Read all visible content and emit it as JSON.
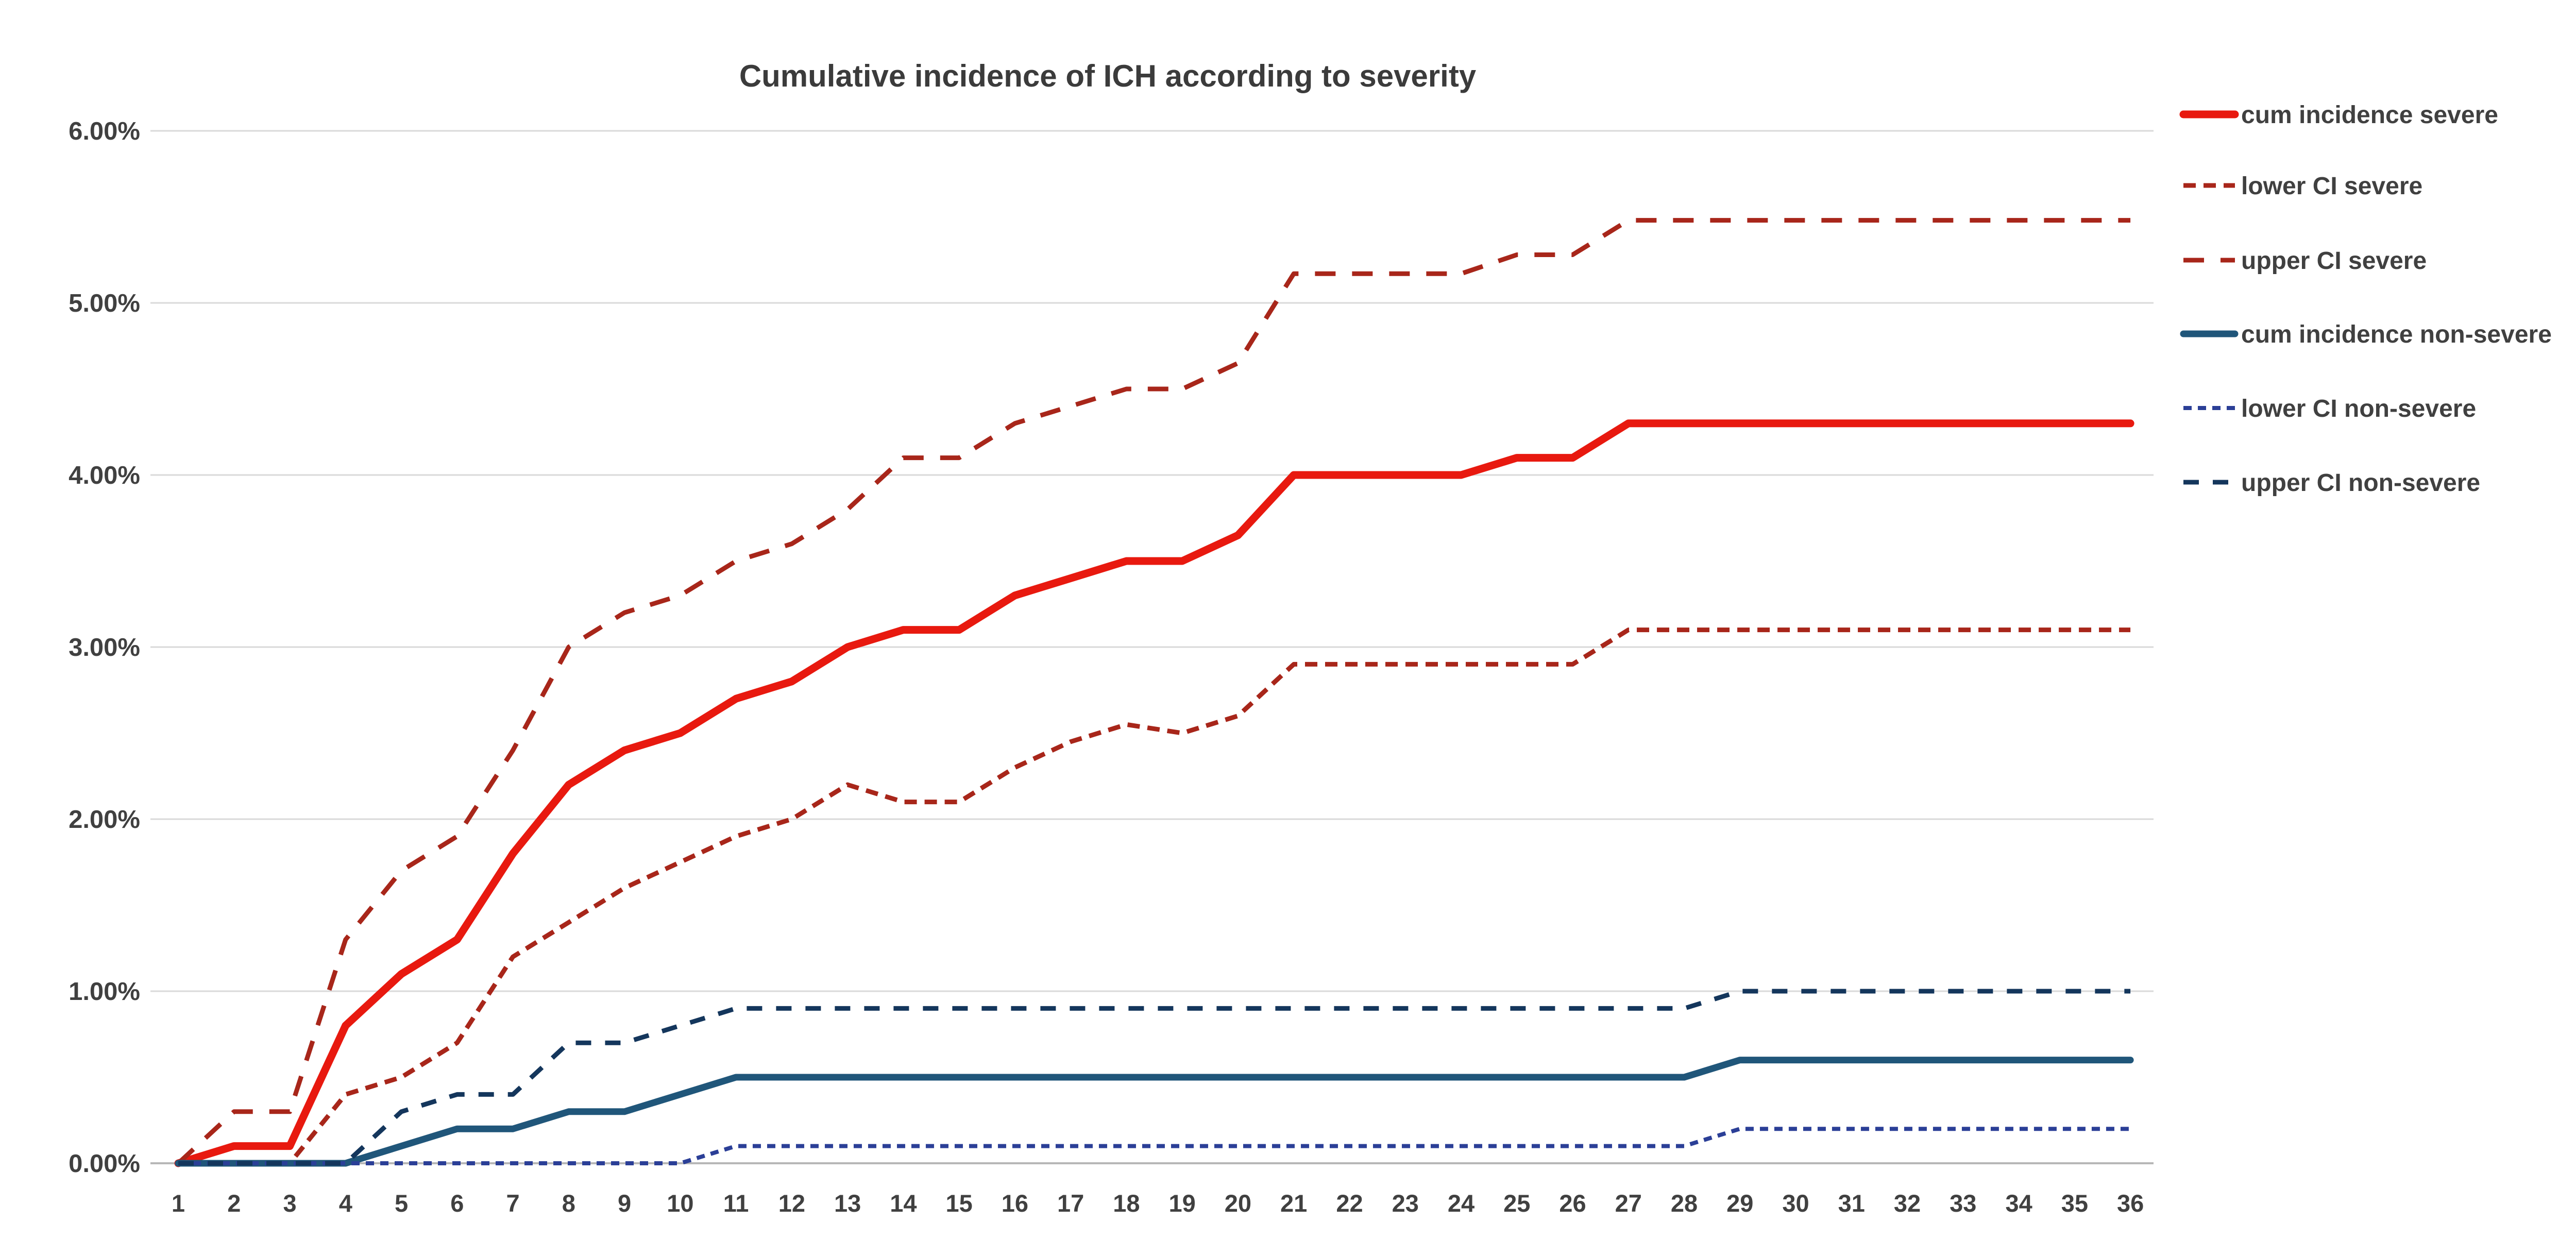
{
  "chart_data": {
    "type": "line",
    "title": "Cumulative incidence of ICH according to severity",
    "x_ticks": [
      1,
      2,
      3,
      4,
      5,
      6,
      7,
      8,
      9,
      10,
      11,
      12,
      13,
      14,
      15,
      16,
      17,
      18,
      19,
      20,
      21,
      22,
      23,
      24,
      25,
      26,
      27,
      28,
      29,
      30,
      31,
      32,
      33,
      34,
      35,
      36
    ],
    "y_ticks": [
      "0.00%",
      "1.00%",
      "2.00%",
      "3.00%",
      "4.00%",
      "5.00%",
      "6.00%"
    ],
    "ylim": [
      0,
      6
    ],
    "grid": "horizontal",
    "legend_position": "right",
    "axis_color": "#404040",
    "gridline_color": "#d9d9d9",
    "baseline_color": "#b7b7b7",
    "series": [
      {
        "name": "cum incidence severe",
        "color": "#e8190f",
        "style": "solid",
        "width": 15,
        "values": [
          0,
          0.1,
          0.1,
          0.8,
          1.1,
          1.3,
          1.8,
          2.2,
          2.4,
          2.5,
          2.7,
          2.8,
          3.0,
          3.1,
          3.1,
          3.3,
          3.4,
          3.5,
          3.5,
          3.65,
          4.0,
          4.0,
          4.0,
          4.0,
          4.1,
          4.1,
          4.3,
          4.3,
          4.3,
          4.3,
          4.3,
          4.3,
          4.3,
          4.3,
          4.3,
          4.3
        ]
      },
      {
        "name": "lower CI severe",
        "color": "#a8261a",
        "style": "dense-dash",
        "width": 9,
        "values": [
          0,
          0,
          0,
          0.4,
          0.5,
          0.7,
          1.2,
          1.4,
          1.6,
          1.75,
          1.9,
          2.0,
          2.2,
          2.1,
          2.1,
          2.3,
          2.45,
          2.55,
          2.5,
          2.6,
          2.9,
          2.9,
          2.9,
          2.9,
          2.9,
          2.9,
          3.1,
          3.1,
          3.1,
          3.1,
          3.1,
          3.1,
          3.1,
          3.1,
          3.1,
          3.1
        ]
      },
      {
        "name": "upper CI severe",
        "color": "#a8261a",
        "style": "long-dash",
        "width": 9,
        "values": [
          0,
          0.3,
          0.3,
          1.3,
          1.7,
          1.9,
          2.4,
          3.0,
          3.2,
          3.3,
          3.5,
          3.6,
          3.8,
          4.1,
          4.1,
          4.3,
          4.4,
          4.5,
          4.5,
          4.65,
          5.17,
          5.17,
          5.17,
          5.17,
          5.28,
          5.28,
          5.48,
          5.48,
          5.48,
          5.48,
          5.48,
          5.48,
          5.48,
          5.48,
          5.48,
          5.48
        ]
      },
      {
        "name": "cum incidence non-severe",
        "color": "#20567a",
        "style": "solid",
        "width": 13,
        "values": [
          0,
          0,
          0,
          0,
          0.1,
          0.2,
          0.2,
          0.3,
          0.3,
          0.4,
          0.5,
          0.5,
          0.5,
          0.5,
          0.5,
          0.5,
          0.5,
          0.5,
          0.5,
          0.5,
          0.5,
          0.5,
          0.5,
          0.5,
          0.5,
          0.5,
          0.5,
          0.5,
          0.6,
          0.6,
          0.6,
          0.6,
          0.6,
          0.6,
          0.6,
          0.6
        ]
      },
      {
        "name": "lower CI  non-severe",
        "color": "#2b3f97",
        "style": "short-dash",
        "width": 8,
        "values": [
          0,
          0,
          0,
          0,
          0,
          0,
          0,
          0,
          0,
          0,
          0.1,
          0.1,
          0.1,
          0.1,
          0.1,
          0.1,
          0.1,
          0.1,
          0.1,
          0.1,
          0.1,
          0.1,
          0.1,
          0.1,
          0.1,
          0.1,
          0.1,
          0.1,
          0.2,
          0.2,
          0.2,
          0.2,
          0.2,
          0.2,
          0.2,
          0.2
        ]
      },
      {
        "name": "upper CI non-severe",
        "color": "#14365c",
        "style": "med-dash",
        "width": 9,
        "values": [
          0,
          0,
          0,
          0,
          0.3,
          0.4,
          0.4,
          0.7,
          0.7,
          0.8,
          0.9,
          0.9,
          0.9,
          0.9,
          0.9,
          0.9,
          0.9,
          0.9,
          0.9,
          0.9,
          0.9,
          0.9,
          0.9,
          0.9,
          0.9,
          0.9,
          0.9,
          0.9,
          1.0,
          1.0,
          1.0,
          1.0,
          1.0,
          1.0,
          1.0,
          1.0
        ]
      }
    ]
  }
}
